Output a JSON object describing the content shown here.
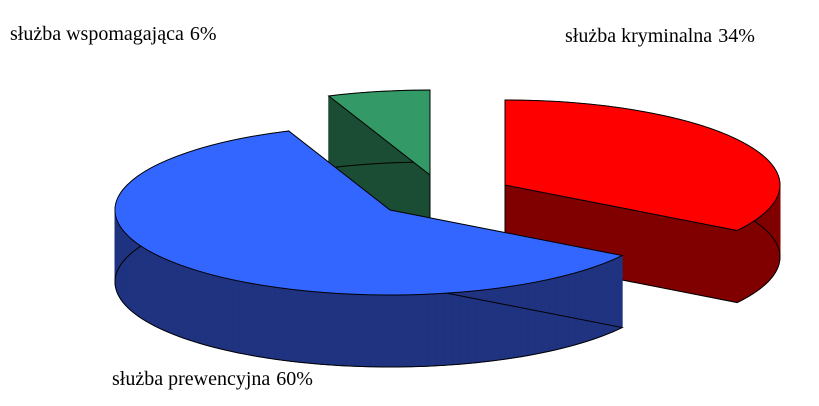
{
  "chart_data": {
    "type": "pie3d",
    "categories": [
      "służba kryminalna",
      "służba prewencyjna",
      "służba wspomagająca"
    ],
    "values": [
      34,
      60,
      6
    ],
    "value_labels": [
      "34%",
      "60%",
      "6%"
    ],
    "colors": [
      "#ff0000",
      "#3366ff",
      "#339966"
    ],
    "side_colors": [
      "#800000",
      "#1f3380",
      "#1a4d33"
    ]
  }
}
